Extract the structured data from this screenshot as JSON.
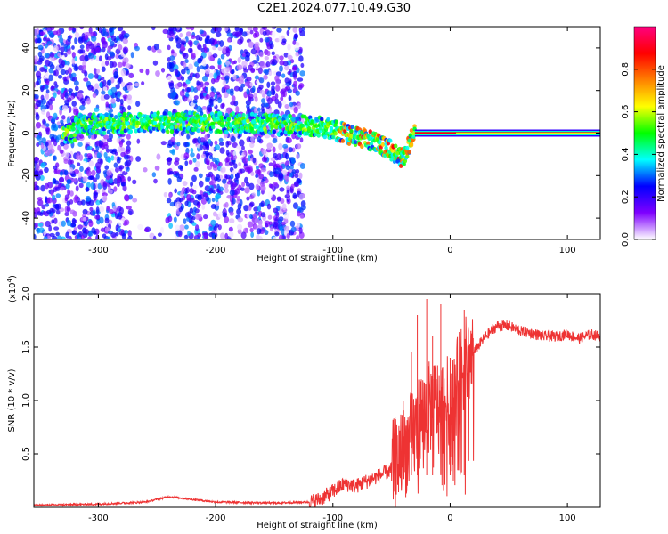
{
  "title": "C2E1.2024.077.10.49.G30",
  "chart_data": [
    {
      "type": "heatmap",
      "xlabel": "Height of straight line (km)",
      "ylabel": "Frequency (Hz)",
      "xlim": [
        -355,
        128
      ],
      "ylim": [
        -50,
        50
      ],
      "xticks": [
        -300,
        -200,
        -100,
        0,
        100
      ],
      "yticks": [
        -40,
        -20,
        0,
        20,
        40
      ],
      "colorbar": {
        "label": "Normalized spectral amplitude",
        "range": [
          0,
          1
        ],
        "ticks": [
          "0.0",
          "0.2",
          "0.4",
          "0.6",
          "0.8"
        ],
        "colors": [
          "#ffffff",
          "#7f00ff",
          "#0000ff",
          "#00ffff",
          "#00ff00",
          "#ffff00",
          "#ff8000",
          "#ff0000",
          "#ff0080"
        ]
      },
      "ridge": {
        "description_points": [
          {
            "x": -320,
            "y": 4
          },
          {
            "x": -250,
            "y": 5
          },
          {
            "x": -200,
            "y": 5
          },
          {
            "x": -150,
            "y": 4
          },
          {
            "x": -110,
            "y": 3
          },
          {
            "x": -90,
            "y": 0
          },
          {
            "x": -70,
            "y": -3
          },
          {
            "x": -50,
            "y": -8
          },
          {
            "x": -40,
            "y": -12
          },
          {
            "x": -30,
            "y": 1
          },
          {
            "x": -10,
            "y": 0
          },
          {
            "x": 0,
            "y": 0
          },
          {
            "x": 50,
            "y": 0
          },
          {
            "x": 128,
            "y": 0
          }
        ]
      }
    },
    {
      "type": "line",
      "xlabel": "Height of straight line (km)",
      "ylabel": "SNR (10 * v/v)",
      "multiplier": "(x10",
      "multiplier_exp": "4",
      "multiplier_close": ")",
      "xlim": [
        -355,
        128
      ],
      "ylim": [
        0,
        2.0
      ],
      "xticks": [
        -300,
        -200,
        -100,
        0,
        100
      ],
      "yticks": [
        "0.5",
        "1.0",
        "1.5",
        "2.0"
      ],
      "color": "#ee3333",
      "series": [
        {
          "x": [
            -355,
            -300,
            -260,
            -240,
            -200,
            -150,
            -120,
            -110,
            -100,
            -90,
            -80,
            -70,
            -60,
            -50,
            -45,
            -40,
            -35,
            -30,
            -25,
            -20,
            -15,
            -10,
            -5,
            0,
            5,
            10,
            20,
            30,
            40,
            50,
            60,
            70,
            80,
            90,
            100,
            110,
            120,
            128
          ],
          "y": [
            0.02,
            0.03,
            0.05,
            0.1,
            0.05,
            0.04,
            0.05,
            0.08,
            0.15,
            0.22,
            0.2,
            0.25,
            0.3,
            0.35,
            0.45,
            0.5,
            0.6,
            0.7,
            0.85,
            0.9,
            0.95,
            0.95,
            0.95,
            1.0,
            1.1,
            1.3,
            1.45,
            1.6,
            1.7,
            1.7,
            1.65,
            1.63,
            1.6,
            1.6,
            1.62,
            1.58,
            1.62,
            1.6
          ]
        }
      ],
      "spikes": [
        {
          "x": -40,
          "y": 1.0
        },
        {
          "x": -33,
          "y": 1.45
        },
        {
          "x": -28,
          "y": 1.8
        },
        {
          "x": -20,
          "y": 1.95
        },
        {
          "x": -15,
          "y": 1.6
        },
        {
          "x": -8,
          "y": 1.9
        },
        {
          "x": 0,
          "y": 1.4
        },
        {
          "x": 12,
          "y": 1.85
        }
      ]
    }
  ]
}
